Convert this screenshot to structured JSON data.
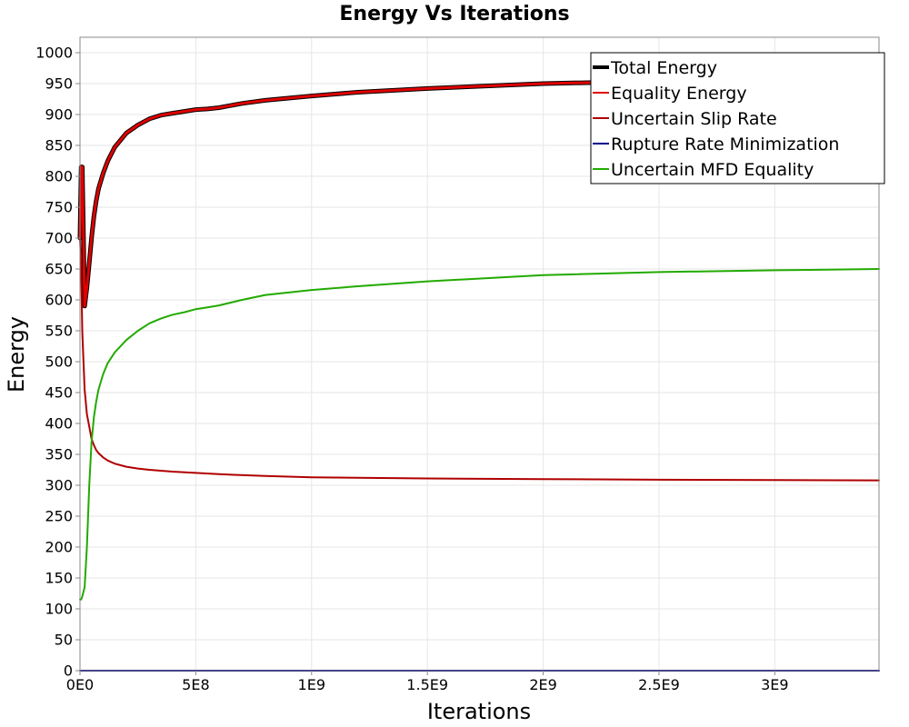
{
  "chart_data": {
    "type": "line",
    "title": "Energy Vs Iterations",
    "xlabel": "Iterations",
    "ylabel": "Energy",
    "xlim": [
      0,
      3450000000
    ],
    "ylim": [
      0,
      1025
    ],
    "x_ticks": [
      0,
      500000000,
      1000000000,
      1500000000,
      2000000000,
      2500000000,
      3000000000
    ],
    "x_tick_labels": [
      "0E0",
      "5E8",
      "1E9",
      "1.5E9",
      "2E9",
      "2.5E9",
      "3E9"
    ],
    "y_ticks": [
      0,
      50,
      100,
      150,
      200,
      250,
      300,
      350,
      400,
      450,
      500,
      550,
      600,
      650,
      700,
      750,
      800,
      850,
      900,
      950,
      1000
    ],
    "y_tick_labels": [
      "0",
      "50",
      "100",
      "150",
      "200",
      "250",
      "300",
      "350",
      "400",
      "450",
      "500",
      "550",
      "600",
      "650",
      "700",
      "750",
      "800",
      "850",
      "900",
      "950",
      "1000"
    ],
    "grid": true,
    "legend_position": "top-right",
    "series": [
      {
        "name": "Total Energy",
        "color": "#000000",
        "width": 5,
        "x": [
          0,
          5000000,
          10000000,
          20000000,
          30000000,
          40000000,
          50000000,
          60000000,
          70000000,
          80000000,
          100000000,
          120000000,
          150000000,
          200000000,
          250000000,
          300000000,
          350000000,
          400000000,
          450000000,
          500000000,
          550000000,
          600000000,
          700000000,
          800000000,
          1000000000,
          1200000000,
          1500000000,
          2000000000,
          2500000000,
          3000000000,
          3450000000
        ],
        "y": [
          700,
          815,
          815,
          590,
          620,
          660,
          700,
          735,
          760,
          780,
          805,
          825,
          847,
          870,
          883,
          893,
          899,
          902,
          905,
          908,
          909,
          911,
          918,
          923,
          930,
          936,
          942,
          950,
          954,
          957,
          959
        ]
      },
      {
        "name": "Equality Energy",
        "color": "#e00000",
        "width": 3,
        "x": [
          0,
          5000000,
          10000000,
          20000000,
          30000000,
          40000000,
          50000000,
          60000000,
          70000000,
          80000000,
          100000000,
          120000000,
          150000000,
          200000000,
          250000000,
          300000000,
          350000000,
          400000000,
          450000000,
          500000000,
          550000000,
          600000000,
          700000000,
          800000000,
          1000000000,
          1200000000,
          1500000000,
          2000000000,
          2500000000,
          3000000000,
          3450000000
        ],
        "y": [
          700,
          815,
          815,
          590,
          620,
          660,
          700,
          735,
          760,
          780,
          805,
          825,
          847,
          870,
          883,
          893,
          899,
          902,
          905,
          908,
          909,
          911,
          918,
          923,
          930,
          936,
          942,
          950,
          954,
          957,
          959
        ]
      },
      {
        "name": "Uncertain Slip Rate",
        "color": "#b00000",
        "width": 2,
        "x": [
          0,
          5000000,
          10000000,
          20000000,
          30000000,
          40000000,
          50000000,
          60000000,
          70000000,
          80000000,
          100000000,
          120000000,
          150000000,
          200000000,
          250000000,
          300000000,
          400000000,
          500000000,
          600000000,
          800000000,
          1000000000,
          1500000000,
          2000000000,
          2500000000,
          3000000000,
          3450000000
        ],
        "y": [
          700,
          650,
          550,
          455,
          415,
          395,
          375,
          365,
          357,
          352,
          345,
          340,
          335,
          330,
          327,
          325,
          322,
          320,
          318,
          315,
          313,
          311,
          310,
          309,
          308.5,
          308
        ]
      },
      {
        "name": "Rupture Rate Minimization",
        "color": "#000088",
        "width": 2,
        "x": [
          0,
          3450000000
        ],
        "y": [
          0,
          0
        ]
      },
      {
        "name": "Uncertain MFD Equality",
        "color": "#22aa00",
        "width": 2,
        "x": [
          0,
          5000000,
          10000000,
          20000000,
          30000000,
          40000000,
          50000000,
          60000000,
          70000000,
          80000000,
          100000000,
          120000000,
          150000000,
          200000000,
          250000000,
          300000000,
          350000000,
          400000000,
          450000000,
          500000000,
          550000000,
          600000000,
          700000000,
          800000000,
          1000000000,
          1200000000,
          1500000000,
          2000000000,
          2500000000,
          3000000000,
          3450000000
        ],
        "y": [
          115,
          115,
          120,
          135,
          200,
          300,
          370,
          410,
          435,
          455,
          480,
          498,
          515,
          535,
          550,
          562,
          570,
          576,
          580,
          585,
          588,
          591,
          600,
          608,
          616,
          622,
          630,
          640,
          645,
          648,
          650
        ]
      }
    ]
  }
}
